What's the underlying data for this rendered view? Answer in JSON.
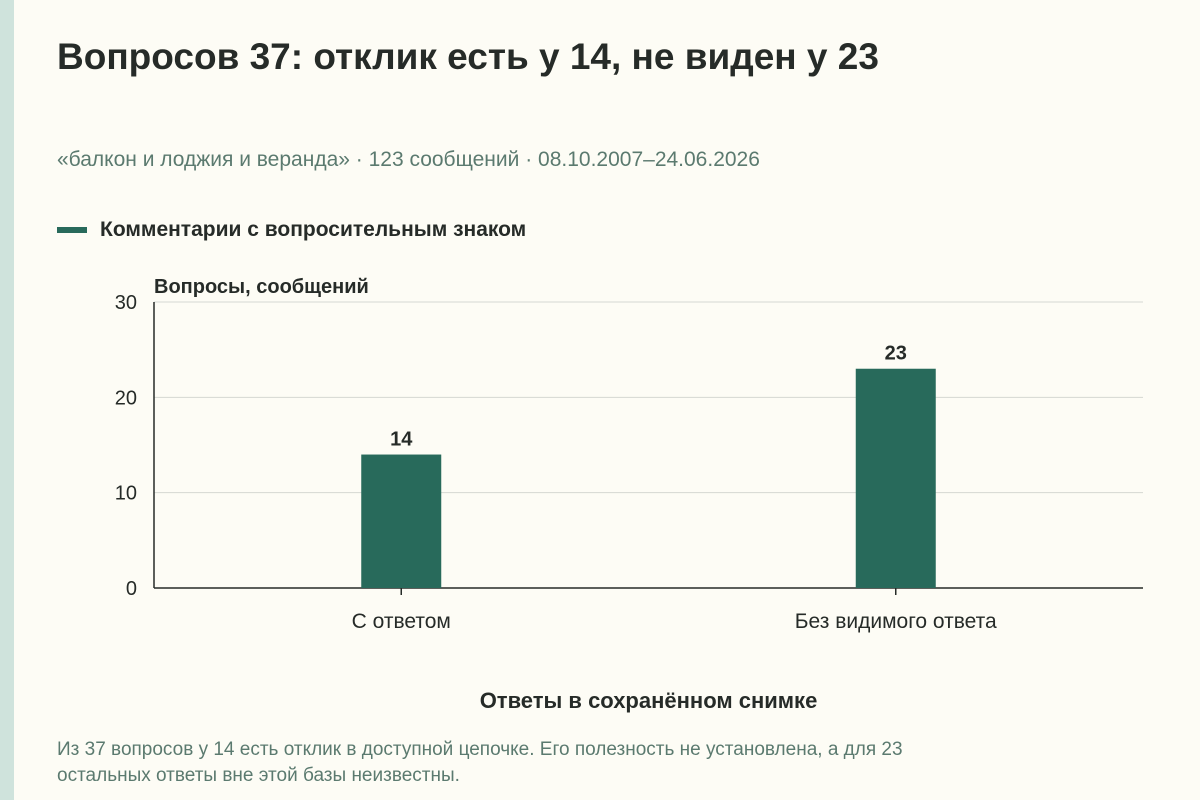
{
  "title": "Вопросов 37: отклик есть у 14, не виден у 23",
  "subtitle": "«балкон и лоджия и веранда» · 123 сообщений · 08.10.2007–24.06.2026",
  "legend": {
    "label": "Комментарии с вопросительным знаком",
    "color": "#286a5b"
  },
  "note": {
    "line1": "Из 37 вопросов у 14 есть отклик в доступной цепочке. Его полезность не установлена, а для 23",
    "line2": "остальных ответы вне этой базы неизвестны."
  },
  "chart_data": {
    "type": "bar",
    "categories": [
      "С ответом",
      "Без видимого ответа"
    ],
    "series": [
      {
        "name": "Комментарии с вопросительным знаком",
        "values": [
          14,
          23
        ],
        "color": "#286a5b"
      }
    ],
    "ylabel": "Вопросы, сообщений",
    "xlabel": "Ответы в сохранённом снимке",
    "ylim": [
      0,
      30
    ],
    "yticks": [
      0,
      10,
      20,
      30
    ],
    "grid": true,
    "legend_position": "top-left",
    "data_labels": true
  }
}
